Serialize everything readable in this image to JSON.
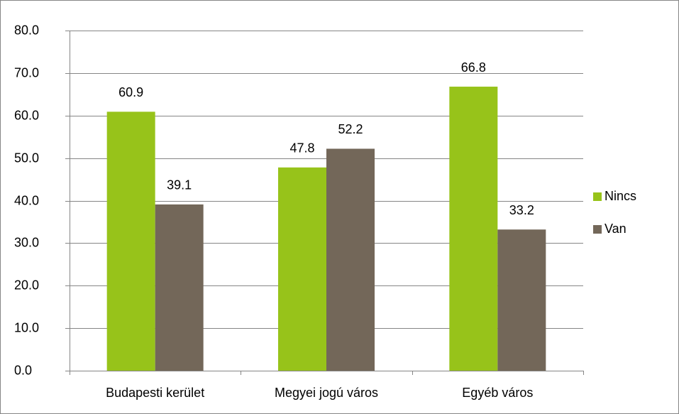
{
  "chart_data": {
    "type": "bar",
    "categories": [
      "Budapesti kerület",
      "Megyei jogú város",
      "Egyéb város"
    ],
    "series": [
      {
        "name": "Nincs",
        "color": "#97c31a",
        "values": [
          60.9,
          47.8,
          66.8
        ]
      },
      {
        "name": "Van",
        "color": "#736759",
        "values": [
          39.1,
          52.2,
          33.2
        ]
      }
    ],
    "ylim": [
      0,
      80
    ],
    "yticks": [
      {
        "value": 0,
        "label": "0.0"
      },
      {
        "value": 10,
        "label": "10.0"
      },
      {
        "value": 20,
        "label": "20.0"
      },
      {
        "value": 30,
        "label": "30.0"
      },
      {
        "value": 40,
        "label": "40.0"
      },
      {
        "value": 50,
        "label": "50.0"
      },
      {
        "value": 60,
        "label": "60.0"
      },
      {
        "value": 70,
        "label": "70.0"
      },
      {
        "value": 80,
        "label": "80.0"
      }
    ],
    "grid": true,
    "legend": "right"
  }
}
